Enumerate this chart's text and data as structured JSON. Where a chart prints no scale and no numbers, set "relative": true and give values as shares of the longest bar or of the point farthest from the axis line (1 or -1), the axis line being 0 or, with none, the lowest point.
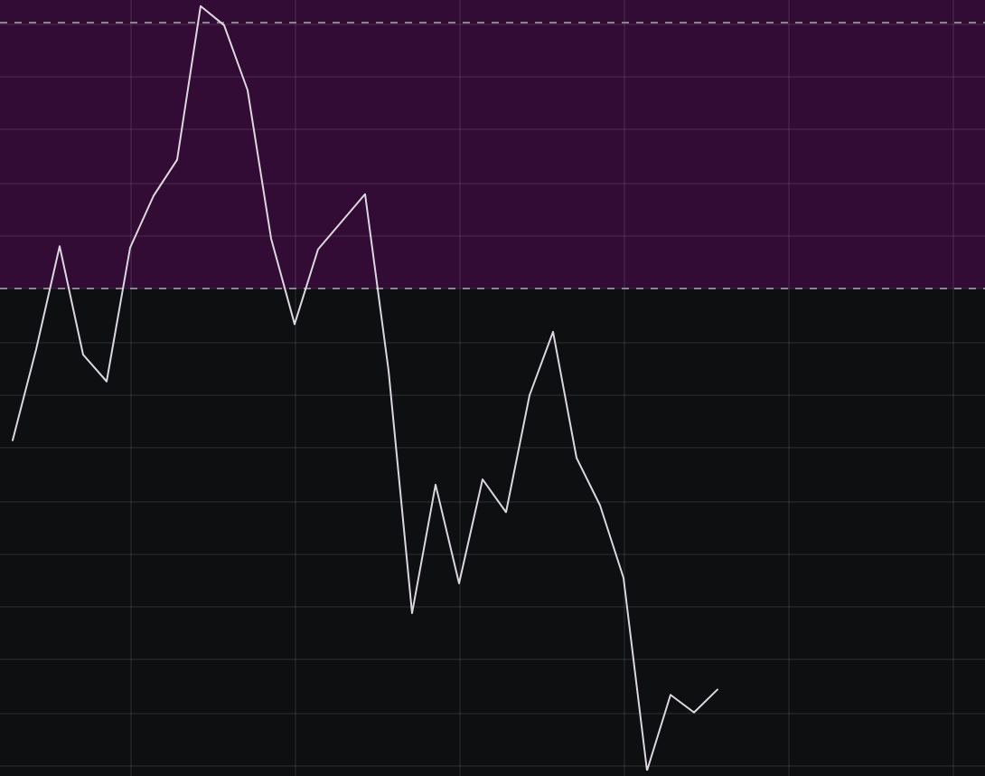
{
  "chart_data": {
    "type": "line",
    "relative": true,
    "categories": [
      null,
      null,
      null,
      null,
      null,
      null,
      null,
      null,
      null,
      null,
      null,
      null,
      null,
      null,
      null,
      null,
      null,
      null,
      null,
      null,
      null,
      null,
      null,
      null,
      null,
      null,
      null,
      null,
      null,
      null,
      null,
      null,
      null,
      null,
      null,
      null,
      null,
      null,
      null,
      null,
      null,
      null
    ],
    "values": [
      0.432,
      0.551,
      0.686,
      0.544,
      0.509,
      0.684,
      0.752,
      0.799,
      1,
      0.975,
      0.89,
      0.696,
      0.584,
      0.682,
      0.718,
      0.754,
      0.523,
      0.206,
      0.374,
      0.245,
      0.381,
      0.338,
      0.491,
      0.574,
      0.409,
      0.347,
      0.252,
      0,
      0.099,
      0.076,
      0.106,
      null,
      null,
      null,
      null,
      null,
      null,
      null,
      null,
      null,
      null,
      null
    ],
    "color": "#dcd6e0",
    "bands": [
      {
        "axis": "y",
        "from": 0.631,
        "to": 1.008,
        "color": "#320c34"
      }
    ],
    "ref_lines": [
      {
        "axis": "y",
        "value": 0.979,
        "line_style": "dashed",
        "color": "#8a8290"
      },
      {
        "axis": "y",
        "value": 0.631,
        "line_style": "dashed",
        "color": "#8a8290"
      }
    ],
    "grid": true,
    "marker": "none",
    "line_style": "solid",
    "legend": false,
    "tick_labels": false
  }
}
